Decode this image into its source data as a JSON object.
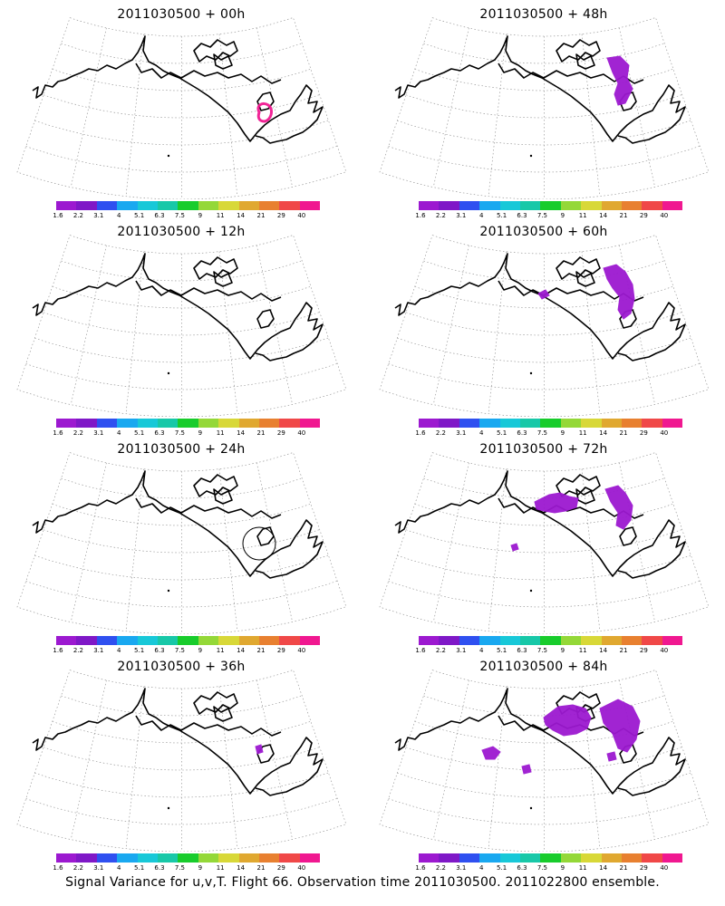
{
  "colorbar": {
    "colors": [
      "#9c19d0",
      "#7f18c7",
      "#2f50f0",
      "#19a8f0",
      "#18c8d8",
      "#18c8a8",
      "#18cc2c",
      "#94d838",
      "#d8d838",
      "#e0a830",
      "#e88030",
      "#f04848",
      "#f01890"
    ],
    "ticks": [
      "1.6",
      "2.2",
      "3.1",
      "4",
      "5.1",
      "6.3",
      "7.5",
      "9",
      "11",
      "14",
      "21",
      "29",
      "40"
    ]
  },
  "panels": [
    {
      "title": "2011030500 + 00h"
    },
    {
      "title": "2011030500 + 48h"
    },
    {
      "title": "2011030500 + 12h"
    },
    {
      "title": "2011030500 + 60h"
    },
    {
      "title": "2011030500 + 24h"
    },
    {
      "title": "2011030500 + 72h"
    },
    {
      "title": "2011030500 + 36h"
    },
    {
      "title": "2011030500 + 84h"
    }
  ],
  "caption": "Signal Variance for u,v,T. Flight 66. Observation time 2011030500. 2011022800 ensemble."
}
